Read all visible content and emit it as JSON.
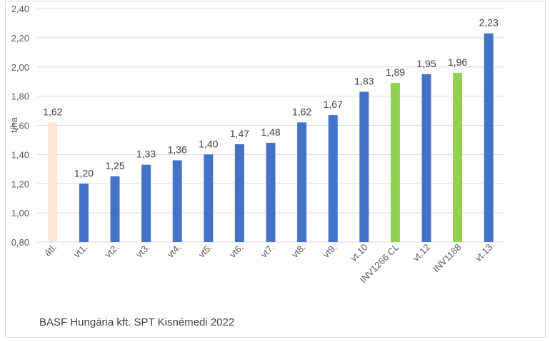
{
  "chart_data": {
    "type": "bar",
    "ylabel": "t/ha",
    "ylim": [
      0.8,
      2.4
    ],
    "yticks": [
      "0,80",
      "1,00",
      "1,20",
      "1,40",
      "1,60",
      "1,80",
      "2,00",
      "2,20",
      "2,40"
    ],
    "ytick_values": [
      0.8,
      1.0,
      1.2,
      1.4,
      1.6,
      1.8,
      2.0,
      2.2,
      2.4
    ],
    "grid": true,
    "categories": [
      "átl.",
      "vt1.",
      "vt2.",
      "vt3.",
      "vt4.",
      "vt5.",
      "vt6.",
      "vt7.",
      "vt8.",
      "vt9.",
      "vt.10",
      "INV1266 CL",
      "vt.12",
      "INV1188",
      "vt.13"
    ],
    "values": [
      1.62,
      1.2,
      1.25,
      1.33,
      1.36,
      1.4,
      1.47,
      1.48,
      1.62,
      1.67,
      1.83,
      1.89,
      1.95,
      1.96,
      2.23
    ],
    "value_labels": [
      "1,62",
      "1,20",
      "1,25",
      "1,33",
      "1,36",
      "1,40",
      "1,47",
      "1,48",
      "1,62",
      "1,67",
      "1,83",
      "1,89",
      "1,95",
      "1,96",
      "2,23"
    ],
    "bar_colors": [
      "#fbe5d6",
      "#4472c4",
      "#4472c4",
      "#4472c4",
      "#4472c4",
      "#4472c4",
      "#4472c4",
      "#4472c4",
      "#4472c4",
      "#4472c4",
      "#4472c4",
      "#92d050",
      "#4472c4",
      "#92d050",
      "#4472c4"
    ]
  },
  "footnote": "BASF Hungária kft. SPT Kisnémedi 2022"
}
